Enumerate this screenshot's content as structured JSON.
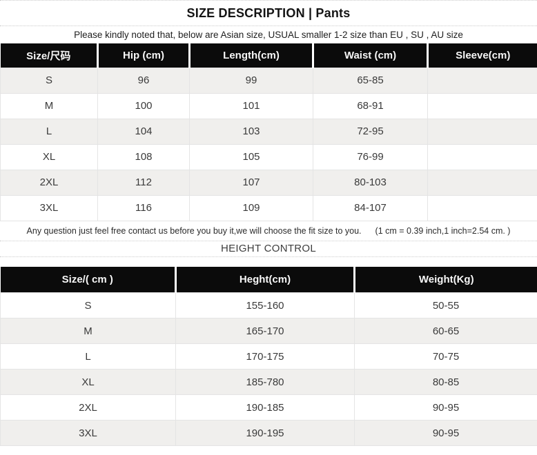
{
  "page": {
    "title": "SIZE DESCRIPTION | Pants",
    "notice": "Please kindly noted that, below are Asian size, USUAL smaller 1-2 size than EU , SU , AU size",
    "middle_note": "Any question just feel free contact us before you buy it,we will choose the fit size to you.",
    "conversion_note": "(1 cm = 0.39 inch,1 inch=2.54 cm. )",
    "section2_title": "HEIGHT CONTROL"
  },
  "colors": {
    "header_bg": "#0b0b0b",
    "stripe_bg": "#f0efed",
    "border": "#e4e4e4"
  },
  "size_table": {
    "headers": [
      "Size/尺码",
      "Hip (cm)",
      "Length(cm)",
      "Waist (cm)",
      "Sleeve(cm)"
    ],
    "rows": [
      [
        "S",
        "96",
        "99",
        "65-85",
        ""
      ],
      [
        "M",
        "100",
        "101",
        "68-91",
        ""
      ],
      [
        "L",
        "104",
        "103",
        "72-95",
        ""
      ],
      [
        "XL",
        "108",
        "105",
        "76-99",
        ""
      ],
      [
        "2XL",
        "112",
        "107",
        "80-103",
        ""
      ],
      [
        "3XL",
        "116",
        "109",
        "84-107",
        ""
      ]
    ]
  },
  "height_table": {
    "headers": [
      "Size/( cm )",
      "Heght(cm)",
      "Weight(Kg)"
    ],
    "rows": [
      [
        "S",
        "155-160",
        "50-55"
      ],
      [
        "M",
        "165-170",
        "60-65"
      ],
      [
        "L",
        "170-175",
        "70-75"
      ],
      [
        "XL",
        "185-780",
        "80-85"
      ],
      [
        "2XL",
        "190-185",
        "90-95"
      ],
      [
        "3XL",
        "190-195",
        "90-95"
      ]
    ]
  }
}
